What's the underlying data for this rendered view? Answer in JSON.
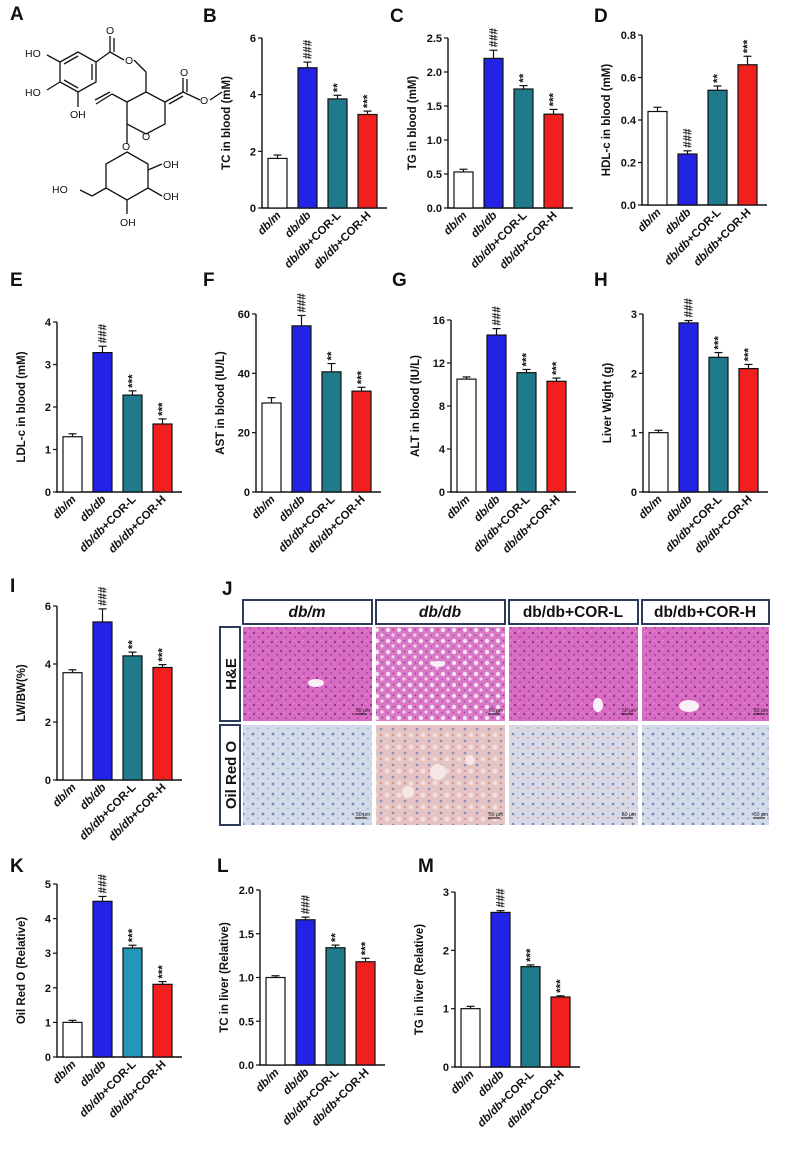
{
  "colors": {
    "dbm": "#ffffff",
    "dbdb": "#2323e6",
    "corl": "#1f7a8c",
    "corl_k": "#2496b8",
    "corh": "#f21f1f",
    "axis": "#111111",
    "he_bg": "#d86fc4",
    "oil_bg": "#d4dbe9",
    "frame": "#2d3a5a"
  },
  "categories": [
    "db/m",
    "db/db",
    "db/db+COR-L",
    "db/db+COR-H"
  ],
  "structure_label": "A",
  "structure": {
    "atoms": [
      "HO",
      "HO",
      "OH",
      "O",
      "O",
      "O",
      "O",
      "O",
      "O",
      "OH",
      "OH",
      "HO",
      "OH"
    ]
  },
  "histology": {
    "letter": "J",
    "columns": [
      "db/m",
      "db/db",
      "db/db+COR-L",
      "db/db+COR-H"
    ],
    "rows": [
      "H&E",
      "Oil Red O"
    ],
    "scale_bar": "50 μm"
  },
  "chart_data": [
    {
      "letter": "B",
      "type": "bar",
      "categories": [
        "db/m",
        "db/db",
        "db/db+COR-L",
        "db/db+COR-H"
      ],
      "ylabel": "TC in blood (mM)",
      "ylim": [
        0,
        6
      ],
      "ticks": [
        "0",
        "2",
        "4",
        "6"
      ],
      "values": [
        1.75,
        4.95,
        3.85,
        3.3
      ],
      "errors": [
        0.12,
        0.2,
        0.13,
        0.12
      ],
      "sig": [
        "",
        "###",
        "**",
        "***"
      ]
    },
    {
      "letter": "C",
      "type": "bar",
      "categories": [
        "db/m",
        "db/db",
        "db/db+COR-L",
        "db/db+COR-H"
      ],
      "ylabel": "TG in blood (mM)",
      "ylim": [
        0,
        2.5
      ],
      "ticks": [
        "0.0",
        "0.5",
        "1.0",
        "1.5",
        "2.0",
        "2.5"
      ],
      "values": [
        0.53,
        2.2,
        1.75,
        1.38
      ],
      "errors": [
        0.04,
        0.12,
        0.05,
        0.07
      ],
      "sig": [
        "",
        "###",
        "**",
        "***"
      ]
    },
    {
      "letter": "D",
      "type": "bar",
      "categories": [
        "db/m",
        "db/db",
        "db/db+COR-L",
        "db/db+COR-H"
      ],
      "ylabel": "HDL-c in blood (mM)",
      "ylim": [
        0,
        0.8
      ],
      "ticks": [
        "0.0",
        "0.2",
        "0.4",
        "0.6",
        "0.8"
      ],
      "values": [
        0.44,
        0.24,
        0.54,
        0.66
      ],
      "errors": [
        0.02,
        0.015,
        0.02,
        0.04
      ],
      "sig": [
        "",
        "###",
        "**",
        "***"
      ]
    },
    {
      "letter": "E",
      "type": "bar",
      "categories": [
        "db/m",
        "db/db",
        "db/db+COR-L",
        "db/db+COR-H"
      ],
      "ylabel": "LDL-c in blood (mM)",
      "ylim": [
        0,
        4
      ],
      "ticks": [
        "0",
        "1",
        "2",
        "3",
        "4"
      ],
      "values": [
        1.3,
        3.28,
        2.28,
        1.6
      ],
      "errors": [
        0.07,
        0.15,
        0.1,
        0.12
      ],
      "sig": [
        "",
        "###",
        "***",
        "***"
      ]
    },
    {
      "letter": "F",
      "type": "bar",
      "categories": [
        "db/m",
        "db/db",
        "db/db+COR-L",
        "db/db+COR-H"
      ],
      "ylabel": "AST in blood (IU/L)",
      "ylim": [
        0,
        60
      ],
      "ticks": [
        "0",
        "20",
        "40",
        "60"
      ],
      "values": [
        30,
        56,
        40.5,
        34
      ],
      "errors": [
        1.8,
        3.5,
        2.8,
        1.3
      ],
      "sig": [
        "",
        "###",
        "**",
        "***"
      ]
    },
    {
      "letter": "G",
      "type": "bar",
      "categories": [
        "db/m",
        "db/db",
        "db/db+COR-L",
        "db/db+COR-H"
      ],
      "ylabel": "ALT in blood (IU/L)",
      "ylim": [
        0,
        16
      ],
      "ticks": [
        "0",
        "4",
        "8",
        "12",
        "16"
      ],
      "values": [
        10.5,
        14.6,
        11.1,
        10.3
      ],
      "errors": [
        0.2,
        0.6,
        0.3,
        0.3
      ],
      "sig": [
        "",
        "###",
        "***",
        "***"
      ]
    },
    {
      "letter": "H",
      "type": "bar",
      "categories": [
        "db/m",
        "db/db",
        "db/db+COR-L",
        "db/db+COR-H"
      ],
      "ylabel": "Liver Wight (g)",
      "ylim": [
        0,
        3
      ],
      "ticks": [
        "0",
        "1",
        "2",
        "3"
      ],
      "values": [
        1.0,
        2.85,
        2.27,
        2.08
      ],
      "errors": [
        0.04,
        0.04,
        0.08,
        0.07
      ],
      "sig": [
        "",
        "###",
        "***",
        "***"
      ]
    },
    {
      "letter": "I",
      "type": "bar",
      "categories": [
        "db/m",
        "db/db",
        "db/db+COR-L",
        "db/db+COR-H"
      ],
      "ylabel": "LW/BW(%)",
      "ylim": [
        0,
        6
      ],
      "ticks": [
        "0",
        "2",
        "4",
        "6"
      ],
      "values": [
        3.7,
        5.45,
        4.28,
        3.88
      ],
      "errors": [
        0.1,
        0.45,
        0.13,
        0.1
      ],
      "sig": [
        "",
        "###",
        "**",
        "***"
      ]
    },
    {
      "letter": "K",
      "type": "bar",
      "categories": [
        "db/m",
        "db/db",
        "db/db+COR-L",
        "db/db+COR-H"
      ],
      "ylabel": "Oil Red O (Relative)",
      "ylim": [
        0,
        5
      ],
      "ticks": [
        "0",
        "1",
        "2",
        "3",
        "4",
        "5"
      ],
      "values": [
        1.0,
        4.5,
        3.15,
        2.1
      ],
      "errors": [
        0.06,
        0.14,
        0.08,
        0.08
      ],
      "sig": [
        "",
        "###",
        "***",
        "***"
      ]
    },
    {
      "letter": "L",
      "type": "bar",
      "categories": [
        "db/m",
        "db/db",
        "db/db+COR-L",
        "db/db+COR-H"
      ],
      "ylabel": "TC in liver (Relative)",
      "ylim": [
        0,
        2
      ],
      "ticks": [
        "0.0",
        "0.5",
        "1.0",
        "1.5",
        "2.0"
      ],
      "values": [
        1.0,
        1.66,
        1.34,
        1.18
      ],
      "errors": [
        0.02,
        0.03,
        0.03,
        0.04
      ],
      "sig": [
        "",
        "###",
        "**",
        "***"
      ]
    },
    {
      "letter": "M",
      "type": "bar",
      "categories": [
        "db/m",
        "db/db",
        "db/db+COR-L",
        "db/db+COR-H"
      ],
      "ylabel": "TG in liver (Relative)",
      "ylim": [
        0,
        3
      ],
      "ticks": [
        "0",
        "1",
        "2",
        "3"
      ],
      "values": [
        1.0,
        2.65,
        1.72,
        1.2
      ],
      "errors": [
        0.04,
        0.03,
        0.03,
        0.02
      ],
      "sig": [
        "",
        "###",
        "***",
        "***"
      ]
    }
  ]
}
